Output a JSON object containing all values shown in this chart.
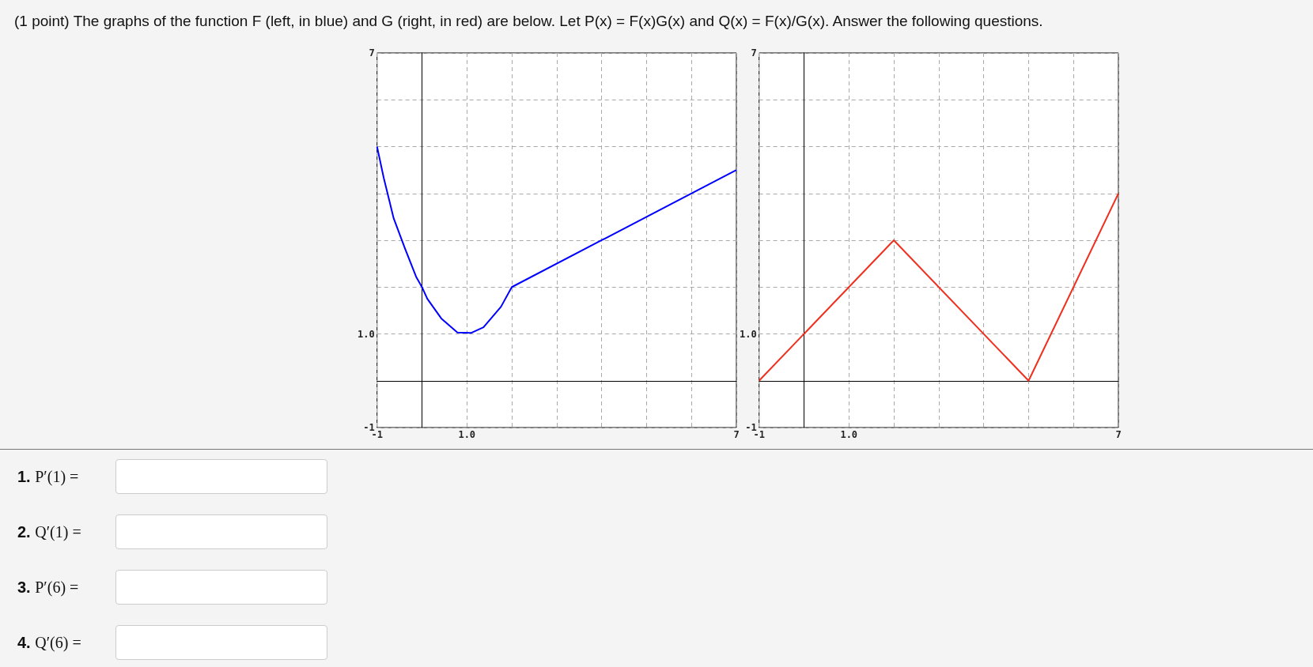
{
  "chart_data": [
    {
      "type": "line",
      "title": "(1 point) The graphs of the function F (left, in blue) and G (right, in red) are below. Let P(x) = F(x)G(x) and Q(x) = F(x)/G(x). Answer the following questions.",
      "annotations": [
        "1. P′(1) =",
        "2. Q′(1) =",
        "3. P′(6) =",
        "4. Q′(6) ="
      ],
      "x": [
        -1,
        -0.85,
        -0.63,
        -0.38,
        -0.13,
        0,
        0.12,
        0.43,
        0.79,
        1.09,
        1.37,
        1.76,
        2,
        7
      ],
      "series": [
        {
          "color": "#0000ff",
          "values": [
            5,
            4.33,
            3.47,
            2.83,
            2.22,
            2,
            1.75,
            1.33,
            1.03,
            1.02,
            1.14,
            1.58,
            2,
            4.5
          ]
        }
      ],
      "xlim": [
        -1,
        7
      ],
      "ylim": [
        -1,
        7
      ],
      "xticks": [
        {
          "value": -1,
          "label": "-1"
        },
        {
          "value": 0,
          "label": null
        },
        {
          "value": 1,
          "label": "1.0"
        },
        {
          "value": 2,
          "label": null
        },
        {
          "value": 3,
          "label": null
        },
        {
          "value": 4,
          "label": null
        },
        {
          "value": 5,
          "label": null
        },
        {
          "value": 6,
          "label": null
        },
        {
          "value": 7,
          "label": "7"
        }
      ],
      "yticks": [
        {
          "value": -1,
          "label": "-1"
        },
        {
          "value": 0,
          "label": null
        },
        {
          "value": 1,
          "label": "1.0"
        },
        {
          "value": 2,
          "label": null
        },
        {
          "value": 3,
          "label": null
        },
        {
          "value": 4,
          "label": null
        },
        {
          "value": 5,
          "label": null
        },
        {
          "value": 6,
          "label": null
        },
        {
          "value": 7,
          "label": "7"
        }
      ],
      "grid": true,
      "marker": "none"
    },
    {
      "type": "line",
      "x": [
        -1,
        2,
        5,
        7
      ],
      "series": [
        {
          "color": "#f0301e",
          "values": [
            0,
            3,
            0,
            4
          ]
        }
      ],
      "xlim": [
        -1,
        7
      ],
      "ylim": [
        -1,
        7
      ],
      "xticks": [
        {
          "value": -1,
          "label": "-1"
        },
        {
          "value": 0,
          "label": null
        },
        {
          "value": 1,
          "label": "1.0"
        },
        {
          "value": 2,
          "label": null
        },
        {
          "value": 3,
          "label": null
        },
        {
          "value": 4,
          "label": null
        },
        {
          "value": 5,
          "label": null
        },
        {
          "value": 6,
          "label": null
        },
        {
          "value": 7,
          "label": "7"
        }
      ],
      "yticks": [
        {
          "value": -1,
          "label": "-1"
        },
        {
          "value": 0,
          "label": null
        },
        {
          "value": 1,
          "label": "1.0"
        },
        {
          "value": 2,
          "label": null
        },
        {
          "value": 3,
          "label": null
        },
        {
          "value": 4,
          "label": null
        },
        {
          "value": 5,
          "label": null
        },
        {
          "value": 6,
          "label": null
        },
        {
          "value": 7,
          "label": "7"
        }
      ],
      "grid": true,
      "marker": "none"
    }
  ]
}
